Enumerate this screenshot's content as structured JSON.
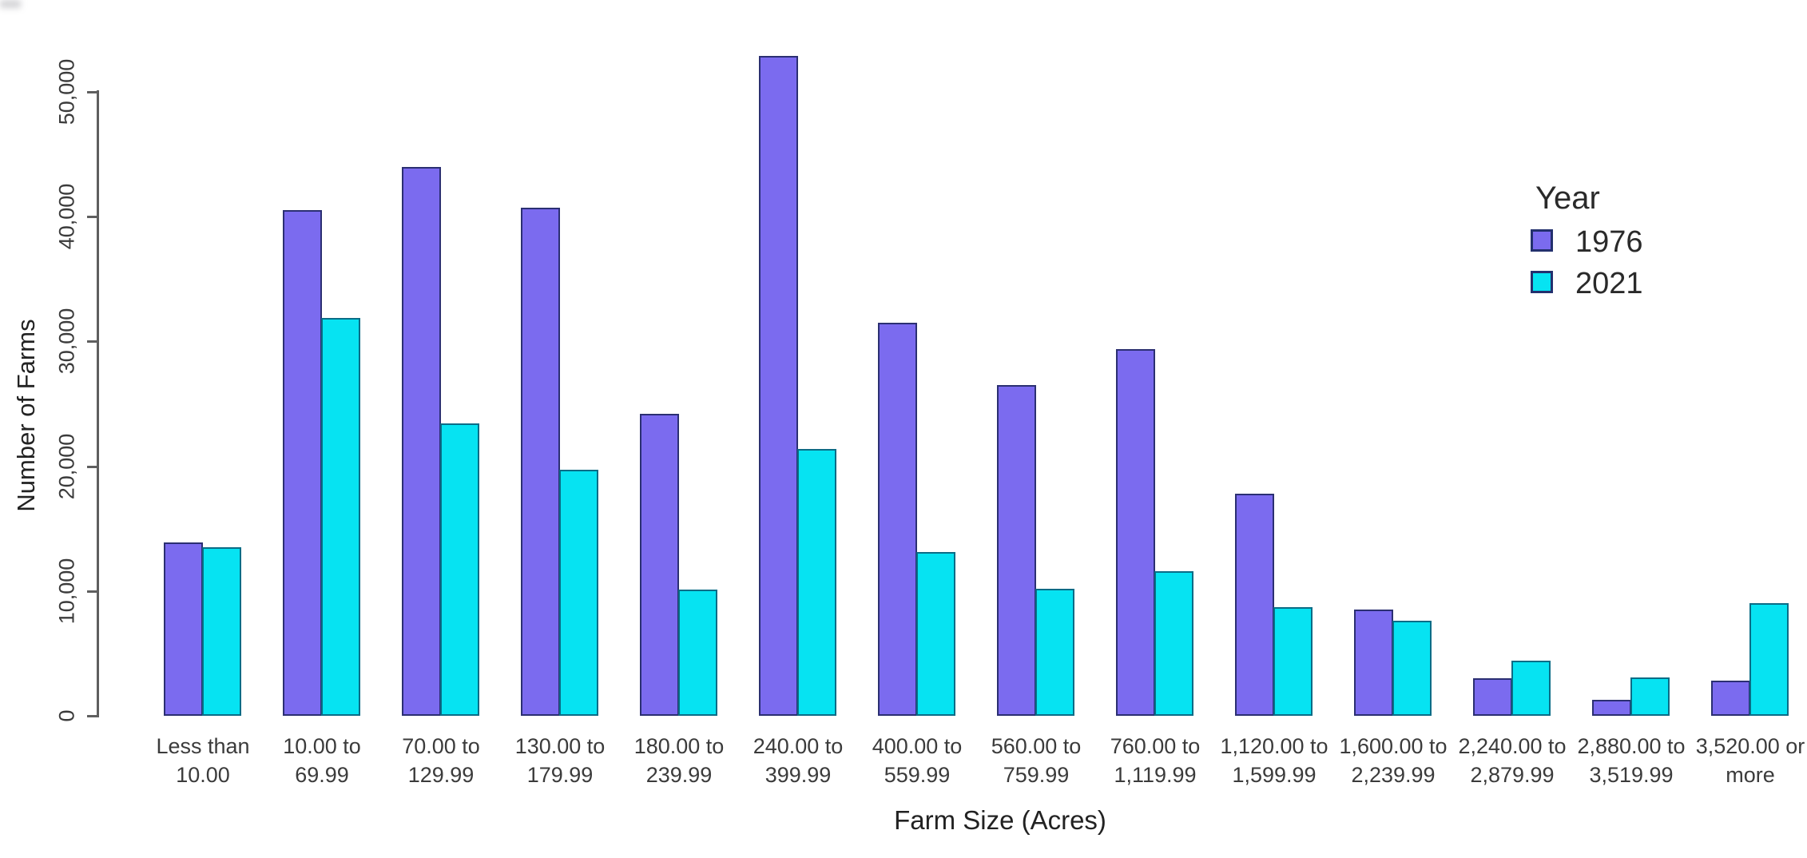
{
  "chart_data": {
    "type": "bar",
    "variant": "grouped",
    "title": "",
    "xlabel": "Farm Size (Acres)",
    "ylabel": "Number of Farms",
    "categories": [
      "Less than 10.00",
      "10.00 to 69.99",
      "70.00 to 129.99",
      "130.00 to 179.99",
      "180.00 to 239.99",
      "240.00 to 399.99",
      "400.00 to 559.99",
      "560.00 to 759.99",
      "760.00 to 1,119.99",
      "1,120.00 to 1,599.99",
      "1,600.00 to 2,239.99",
      "2,240.00 to 2,879.99",
      "2,880.00 to 3,519.99",
      "3,520.00 or more"
    ],
    "category_label_lines": [
      [
        "Less than",
        "10.00"
      ],
      [
        "10.00 to",
        "69.99"
      ],
      [
        "70.00 to",
        "129.99"
      ],
      [
        "130.00 to",
        "179.99"
      ],
      [
        "180.00 to",
        "239.99"
      ],
      [
        "240.00 to",
        "399.99"
      ],
      [
        "400.00 to",
        "559.99"
      ],
      [
        "560.00 to",
        "759.99"
      ],
      [
        "760.00 to",
        "1,119.99"
      ],
      [
        "1,120.00 to",
        "1,599.99"
      ],
      [
        "1,600.00 to",
        "2,239.99"
      ],
      [
        "2,240.00 to",
        "2,879.99"
      ],
      [
        "2,880.00 to",
        "3,519.99"
      ],
      [
        "3,520.00 or",
        "more"
      ]
    ],
    "series": [
      {
        "name": "1976",
        "color": "#7B6BEF",
        "border_color": "#2B2F72",
        "values": [
          13900,
          40500,
          44000,
          40700,
          24200,
          52900,
          31500,
          26500,
          29400,
          17800,
          8500,
          3000,
          1300,
          2800
        ]
      },
      {
        "name": "2021",
        "color": "#06E3F2",
        "border_color": "#0B6C86",
        "values": [
          13500,
          31900,
          23400,
          19700,
          10100,
          21400,
          13100,
          10200,
          11600,
          8700,
          7600,
          4400,
          3100,
          9000
        ]
      }
    ],
    "y_ticks": [
      "0",
      "10,000",
      "20,000",
      "30,000",
      "40,000",
      "50,000"
    ],
    "ylim": [
      0,
      50000
    ],
    "grid": false,
    "legend": {
      "title": "Year",
      "position": "right"
    }
  }
}
